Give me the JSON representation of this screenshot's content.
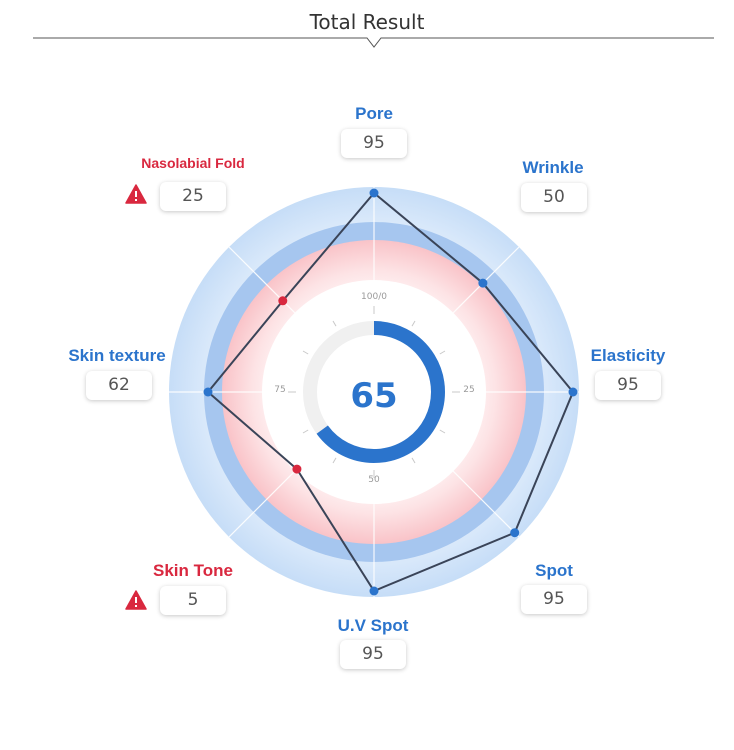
{
  "header": {
    "title": "Total Result"
  },
  "total_score": "65",
  "dial": {
    "top": "100/0",
    "right": "25",
    "bottom": "50",
    "left": "75"
  },
  "metrics": {
    "pore": {
      "label": "Pore",
      "value": "95",
      "warning": false
    },
    "wrinkle": {
      "label": "Wrinkle",
      "value": "50",
      "warning": false
    },
    "elasticity": {
      "label": "Elasticity",
      "value": "95",
      "warning": false
    },
    "spot": {
      "label": "Spot",
      "value": "95",
      "warning": false
    },
    "uv_spot": {
      "label": "U.V Spot",
      "value": "95",
      "warning": false
    },
    "skin_tone": {
      "label": "Skin Tone",
      "value": "5",
      "warning": true
    },
    "skin_texture": {
      "label": "Skin texture",
      "value": "62",
      "warning": false
    },
    "nasolabial_fold": {
      "label": "Nasolabial Fold",
      "value": "25",
      "warning": true
    }
  },
  "colors": {
    "accent_blue": "#2b74cc",
    "warning_red": "#d9283f",
    "line": "#3a4458"
  }
}
